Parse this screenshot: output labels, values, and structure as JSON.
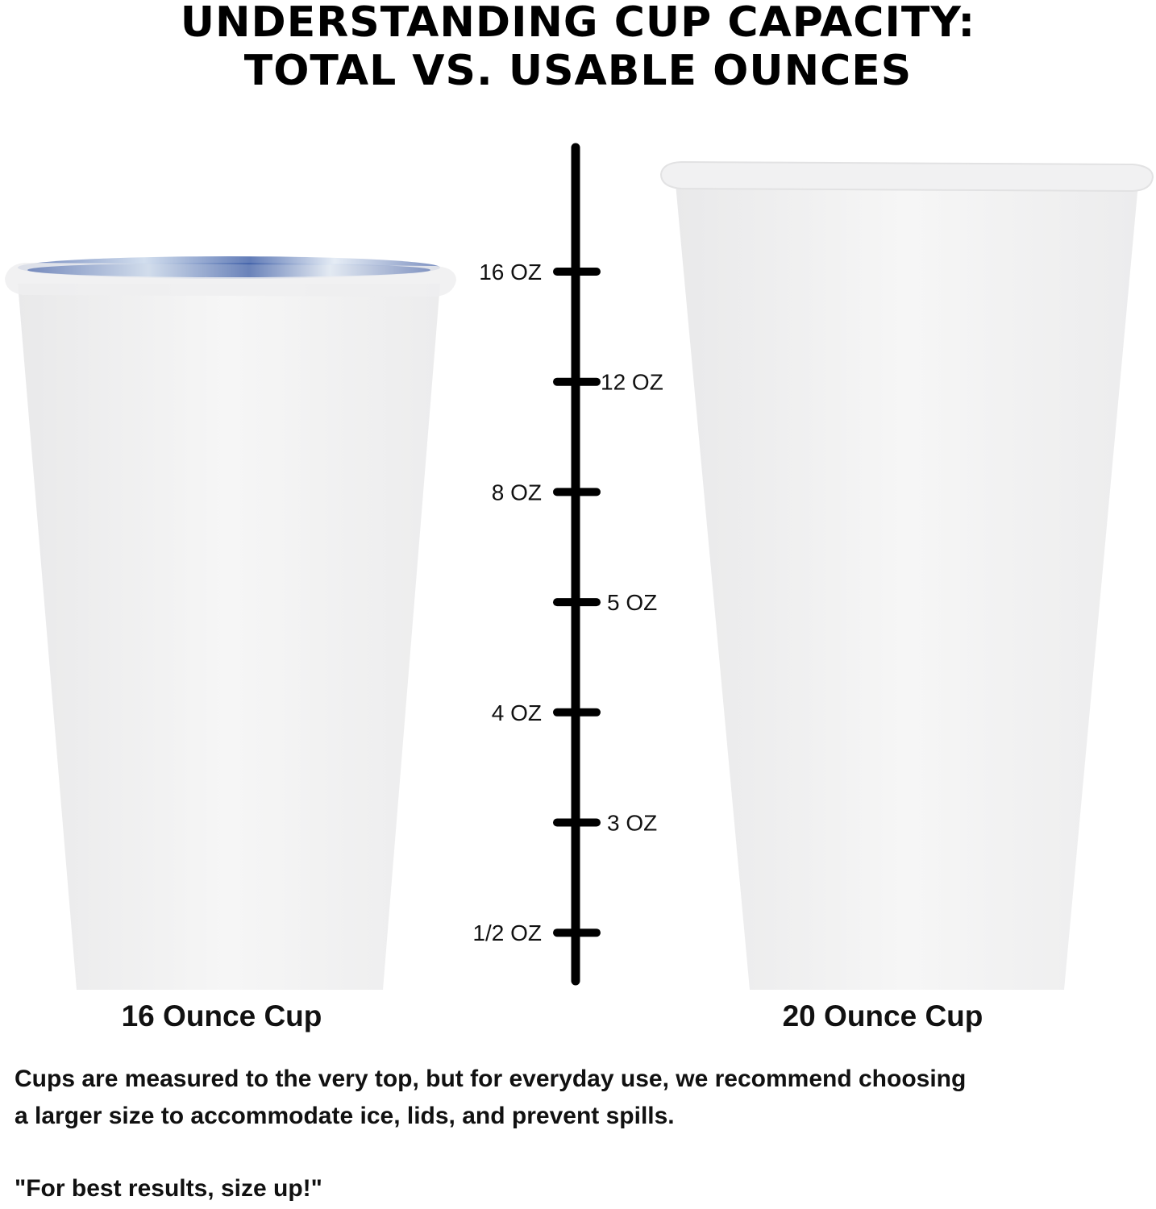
{
  "title": {
    "line1": "UNDERSTANDING CUP CAPACITY:",
    "line2": "TOTAL VS. USABLE OUNCES"
  },
  "scale": {
    "marks": [
      {
        "label": "16 OZ",
        "side": "left"
      },
      {
        "label": "12 OZ",
        "side": "right"
      },
      {
        "label": "8 OZ",
        "side": "left"
      },
      {
        "label": "5 OZ",
        "side": "right"
      },
      {
        "label": "4 OZ",
        "side": "left"
      },
      {
        "label": "3 OZ",
        "side": "right"
      },
      {
        "label": "1/2 OZ",
        "side": "left"
      }
    ]
  },
  "cups": {
    "left_label": "16 Ounce Cup",
    "right_label": "20 Ounce Cup"
  },
  "colors": {
    "cup": "#f2f2f2",
    "water": "#3a5da8",
    "scale": "#000000"
  },
  "text": {
    "line1": "Cups are measured to the very top, but for everyday use, we recommend choosing",
    "line2": "a larger size to accommodate ice, lids, and prevent spills.",
    "quote": "\"For best results, size up!\""
  }
}
